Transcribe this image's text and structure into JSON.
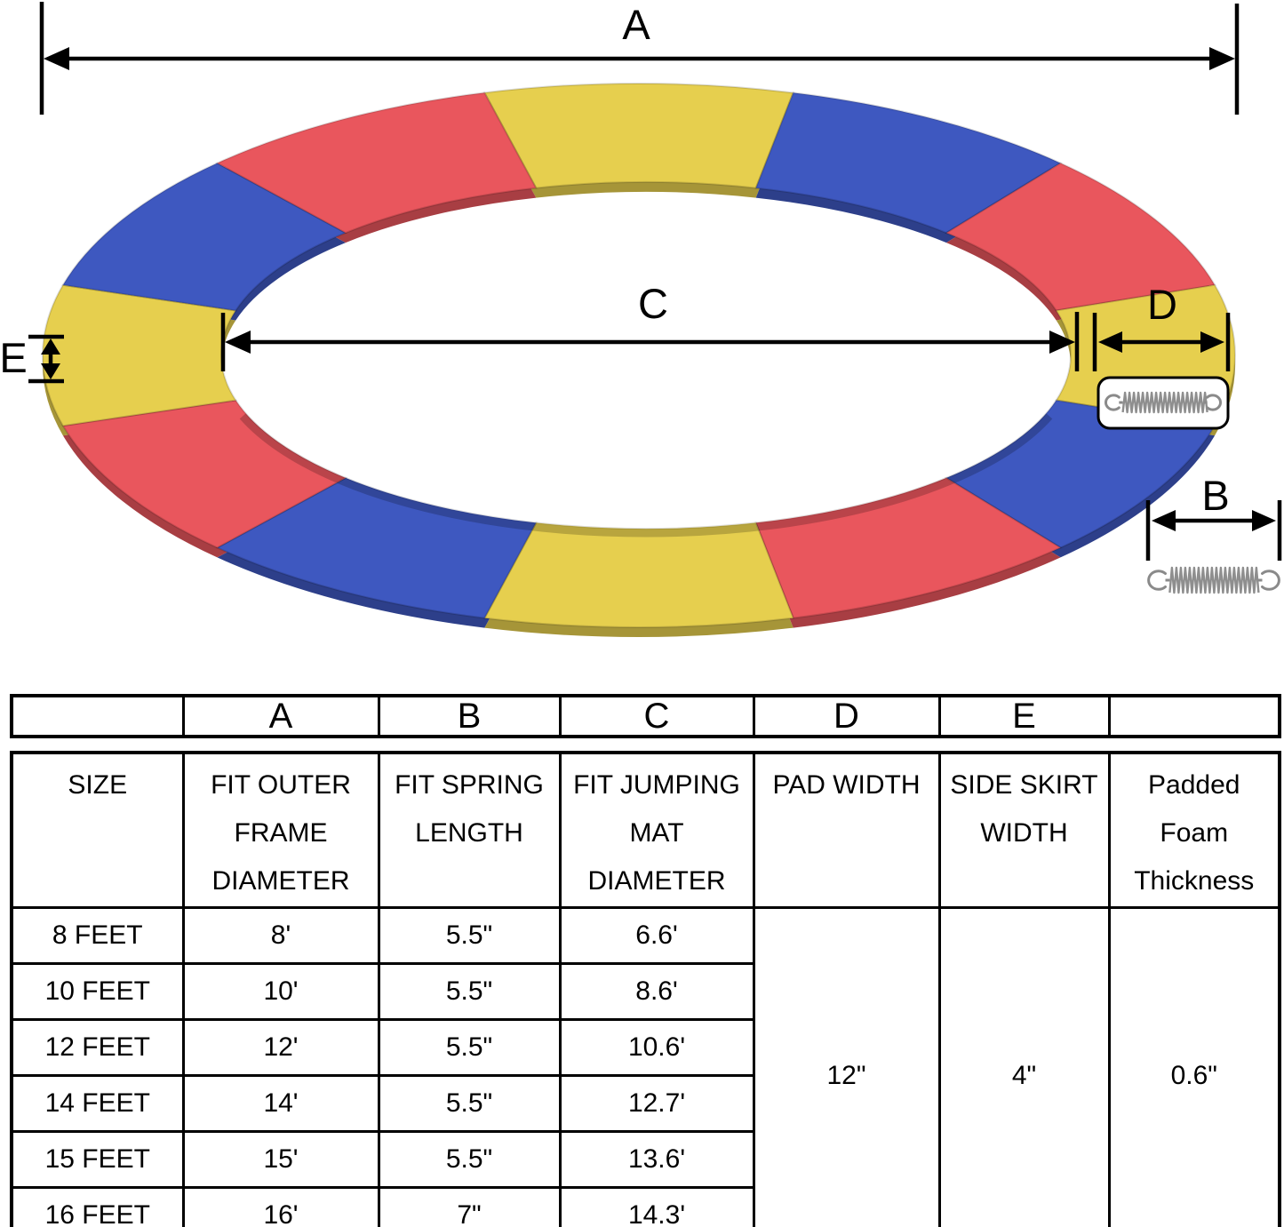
{
  "diagram": {
    "labels": {
      "a": "A",
      "b": "B",
      "c": "C",
      "d": "D",
      "e": "E"
    },
    "ring": {
      "segments": 12,
      "pattern": [
        "yellow",
        "blue",
        "red"
      ],
      "colors": {
        "yellow": "#E6CF4E",
        "red": "#E9565D",
        "blue": "#3E58C0"
      }
    },
    "icons": {
      "spring": "coil-spring-icon"
    },
    "line_color": "#000000"
  },
  "letters_row": [
    "",
    "A",
    "B",
    "C",
    "D",
    "E",
    ""
  ],
  "spec_table": {
    "columns": [
      "SIZE",
      "FIT OUTER\nFRAME\nDIAMETER",
      "FIT SPRING\nLENGTH",
      "FIT JUMPING\nMAT\nDIAMETER",
      "PAD WIDTH",
      "SIDE SKIRT\nWIDTH",
      "Padded\nFoam\nThickness"
    ],
    "rows": [
      [
        "8 FEET",
        "8'",
        "5.5\"",
        "6.6'"
      ],
      [
        "10 FEET",
        "10'",
        "5.5\"",
        "8.6'"
      ],
      [
        "12 FEET",
        "12'",
        "5.5\"",
        "10.6'"
      ],
      [
        "14 FEET",
        "14'",
        "5.5\"",
        "12.7'"
      ],
      [
        "15 FEET",
        "15'",
        "5.5\"",
        "13.6'"
      ],
      [
        "16 FEET",
        "16'",
        "7\"",
        "14.3'"
      ]
    ],
    "merged": {
      "pad_width": "12\"",
      "side_skirt_width": "4\"",
      "padded_foam_thickness": "0.6\""
    }
  }
}
